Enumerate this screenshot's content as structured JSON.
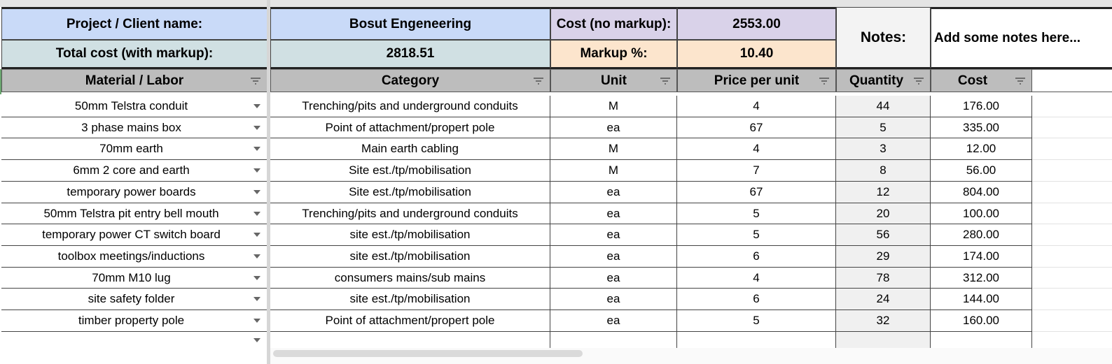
{
  "summary": {
    "project_label": "Project / Client name:",
    "project_value": "Bosut Engeneering",
    "cost_no_markup_label": "Cost (no markup):",
    "cost_no_markup_value": "2553.00",
    "total_cost_label": "Total cost (with markup):",
    "total_cost_value": "2818.51",
    "markup_label": "Markup %:",
    "markup_value": "10.40",
    "notes_label": "Notes:",
    "notes_value": "Add some notes here..."
  },
  "colors": {
    "project_bg": "#c9daf8",
    "total_bg": "#d0e0e3",
    "cost_label_bg": "#d9d2e9",
    "markup_label_bg": "#fce5cd",
    "notes_bg": "#f3f3f3",
    "header_bg": "#bdbdbd"
  },
  "columns": [
    "Material / Labor",
    "Category",
    "Unit",
    "Price per unit",
    "Quantity",
    "Cost"
  ],
  "rows": [
    {
      "material": "50mm Telstra conduit",
      "category": "Trenching/pits and underground conduits",
      "unit": "M",
      "price": "4",
      "qty": "44",
      "cost": "176.00"
    },
    {
      "material": "3 phase mains box",
      "category": "Point of attachment/propert pole",
      "unit": "ea",
      "price": "67",
      "qty": "5",
      "cost": "335.00"
    },
    {
      "material": "70mm earth",
      "category": "Main earth cabling",
      "unit": "M",
      "price": "4",
      "qty": "3",
      "cost": "12.00"
    },
    {
      "material": "6mm 2 core and earth",
      "category": "Site est./tp/mobilisation",
      "unit": "M",
      "price": "7",
      "qty": "8",
      "cost": "56.00"
    },
    {
      "material": "temporary power boards",
      "category": "Site est./tp/mobilisation",
      "unit": "ea",
      "price": "67",
      "qty": "12",
      "cost": "804.00"
    },
    {
      "material": "50mm Telstra pit entry bell mouth",
      "category": "Trenching/pits and underground conduits",
      "unit": "ea",
      "price": "5",
      "qty": "20",
      "cost": "100.00"
    },
    {
      "material": "temporary power CT switch board",
      "category": "site est./tp/mobilisation",
      "unit": "ea",
      "price": "5",
      "qty": "56",
      "cost": "280.00"
    },
    {
      "material": "toolbox meetings/inductions",
      "category": "site est./tp/mobilisation",
      "unit": "ea",
      "price": "6",
      "qty": "29",
      "cost": "174.00"
    },
    {
      "material": "70mm M10 lug",
      "category": "consumers mains/sub mains",
      "unit": "ea",
      "price": "4",
      "qty": "78",
      "cost": "312.00"
    },
    {
      "material": "site safety folder",
      "category": "site est./tp/mobilisation",
      "unit": "ea",
      "price": "6",
      "qty": "24",
      "cost": "144.00"
    },
    {
      "material": "timber property pole",
      "category": "Point of attachment/propert pole",
      "unit": "ea",
      "price": "5",
      "qty": "32",
      "cost": "160.00"
    },
    {
      "material": "",
      "category": "",
      "unit": "",
      "price": "",
      "qty": "",
      "cost": ""
    }
  ]
}
